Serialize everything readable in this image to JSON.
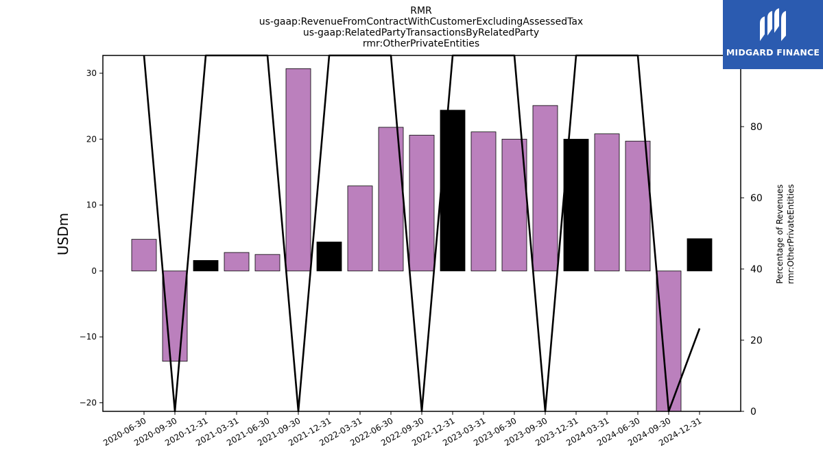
{
  "chart_data": {
    "type": "bar",
    "title_lines": [
      "RMR",
      "us-gaap:RevenueFromContractWithCustomerExcludingAssessedTax",
      "us-gaap:RelatedPartyTransactionsByRelatedParty",
      "rmr:OtherPrivateEntities"
    ],
    "categories": [
      "2020-06-30",
      "2020-09-30",
      "2020-12-31",
      "2021-03-31",
      "2021-06-30",
      "2021-09-30",
      "2021-12-31",
      "2022-03-31",
      "2022-06-30",
      "2022-09-30",
      "2022-12-31",
      "2023-03-31",
      "2023-06-30",
      "2023-09-30",
      "2023-12-31",
      "2024-03-31",
      "2024-06-30",
      "2024-09-30",
      "2024-12-31"
    ],
    "values": [
      4.8,
      -13.7,
      1.6,
      2.8,
      2.5,
      30.7,
      4.4,
      12.9,
      21.8,
      20.6,
      24.4,
      21.1,
      20.0,
      25.1,
      20.0,
      20.8,
      19.7,
      -21.3,
      4.9
    ],
    "bar_colors": [
      "#bb80bd",
      "#bb80bd",
      "#000000",
      "#bb80bd",
      "#bb80bd",
      "#bb80bd",
      "#000000",
      "#bb80bd",
      "#bb80bd",
      "#bb80bd",
      "#000000",
      "#bb80bd",
      "#bb80bd",
      "#bb80bd",
      "#000000",
      "#bb80bd",
      "#bb80bd",
      "#bb80bd",
      "#000000"
    ],
    "line_series": {
      "values": [
        100,
        0,
        100,
        100,
        100,
        0,
        100,
        100,
        100,
        0,
        100,
        100,
        100,
        0,
        100,
        100,
        100,
        0,
        23.3
      ]
    },
    "ylabel": "USDm",
    "ylim": [
      -21.3,
      32.7
    ],
    "yticks": [
      -20,
      -10,
      0,
      10,
      20,
      30
    ],
    "ylabel2_lines": [
      "Percentage of Revenues",
      "rmr:OtherPrivateEntities"
    ],
    "ylim2": [
      0,
      100
    ],
    "yticks2": [
      0,
      20,
      40,
      60,
      80,
      100
    ],
    "grid": false,
    "legend": "none"
  },
  "logo": {
    "text": "MIDGARD FINANCE",
    "color": "#2b5bb0"
  }
}
